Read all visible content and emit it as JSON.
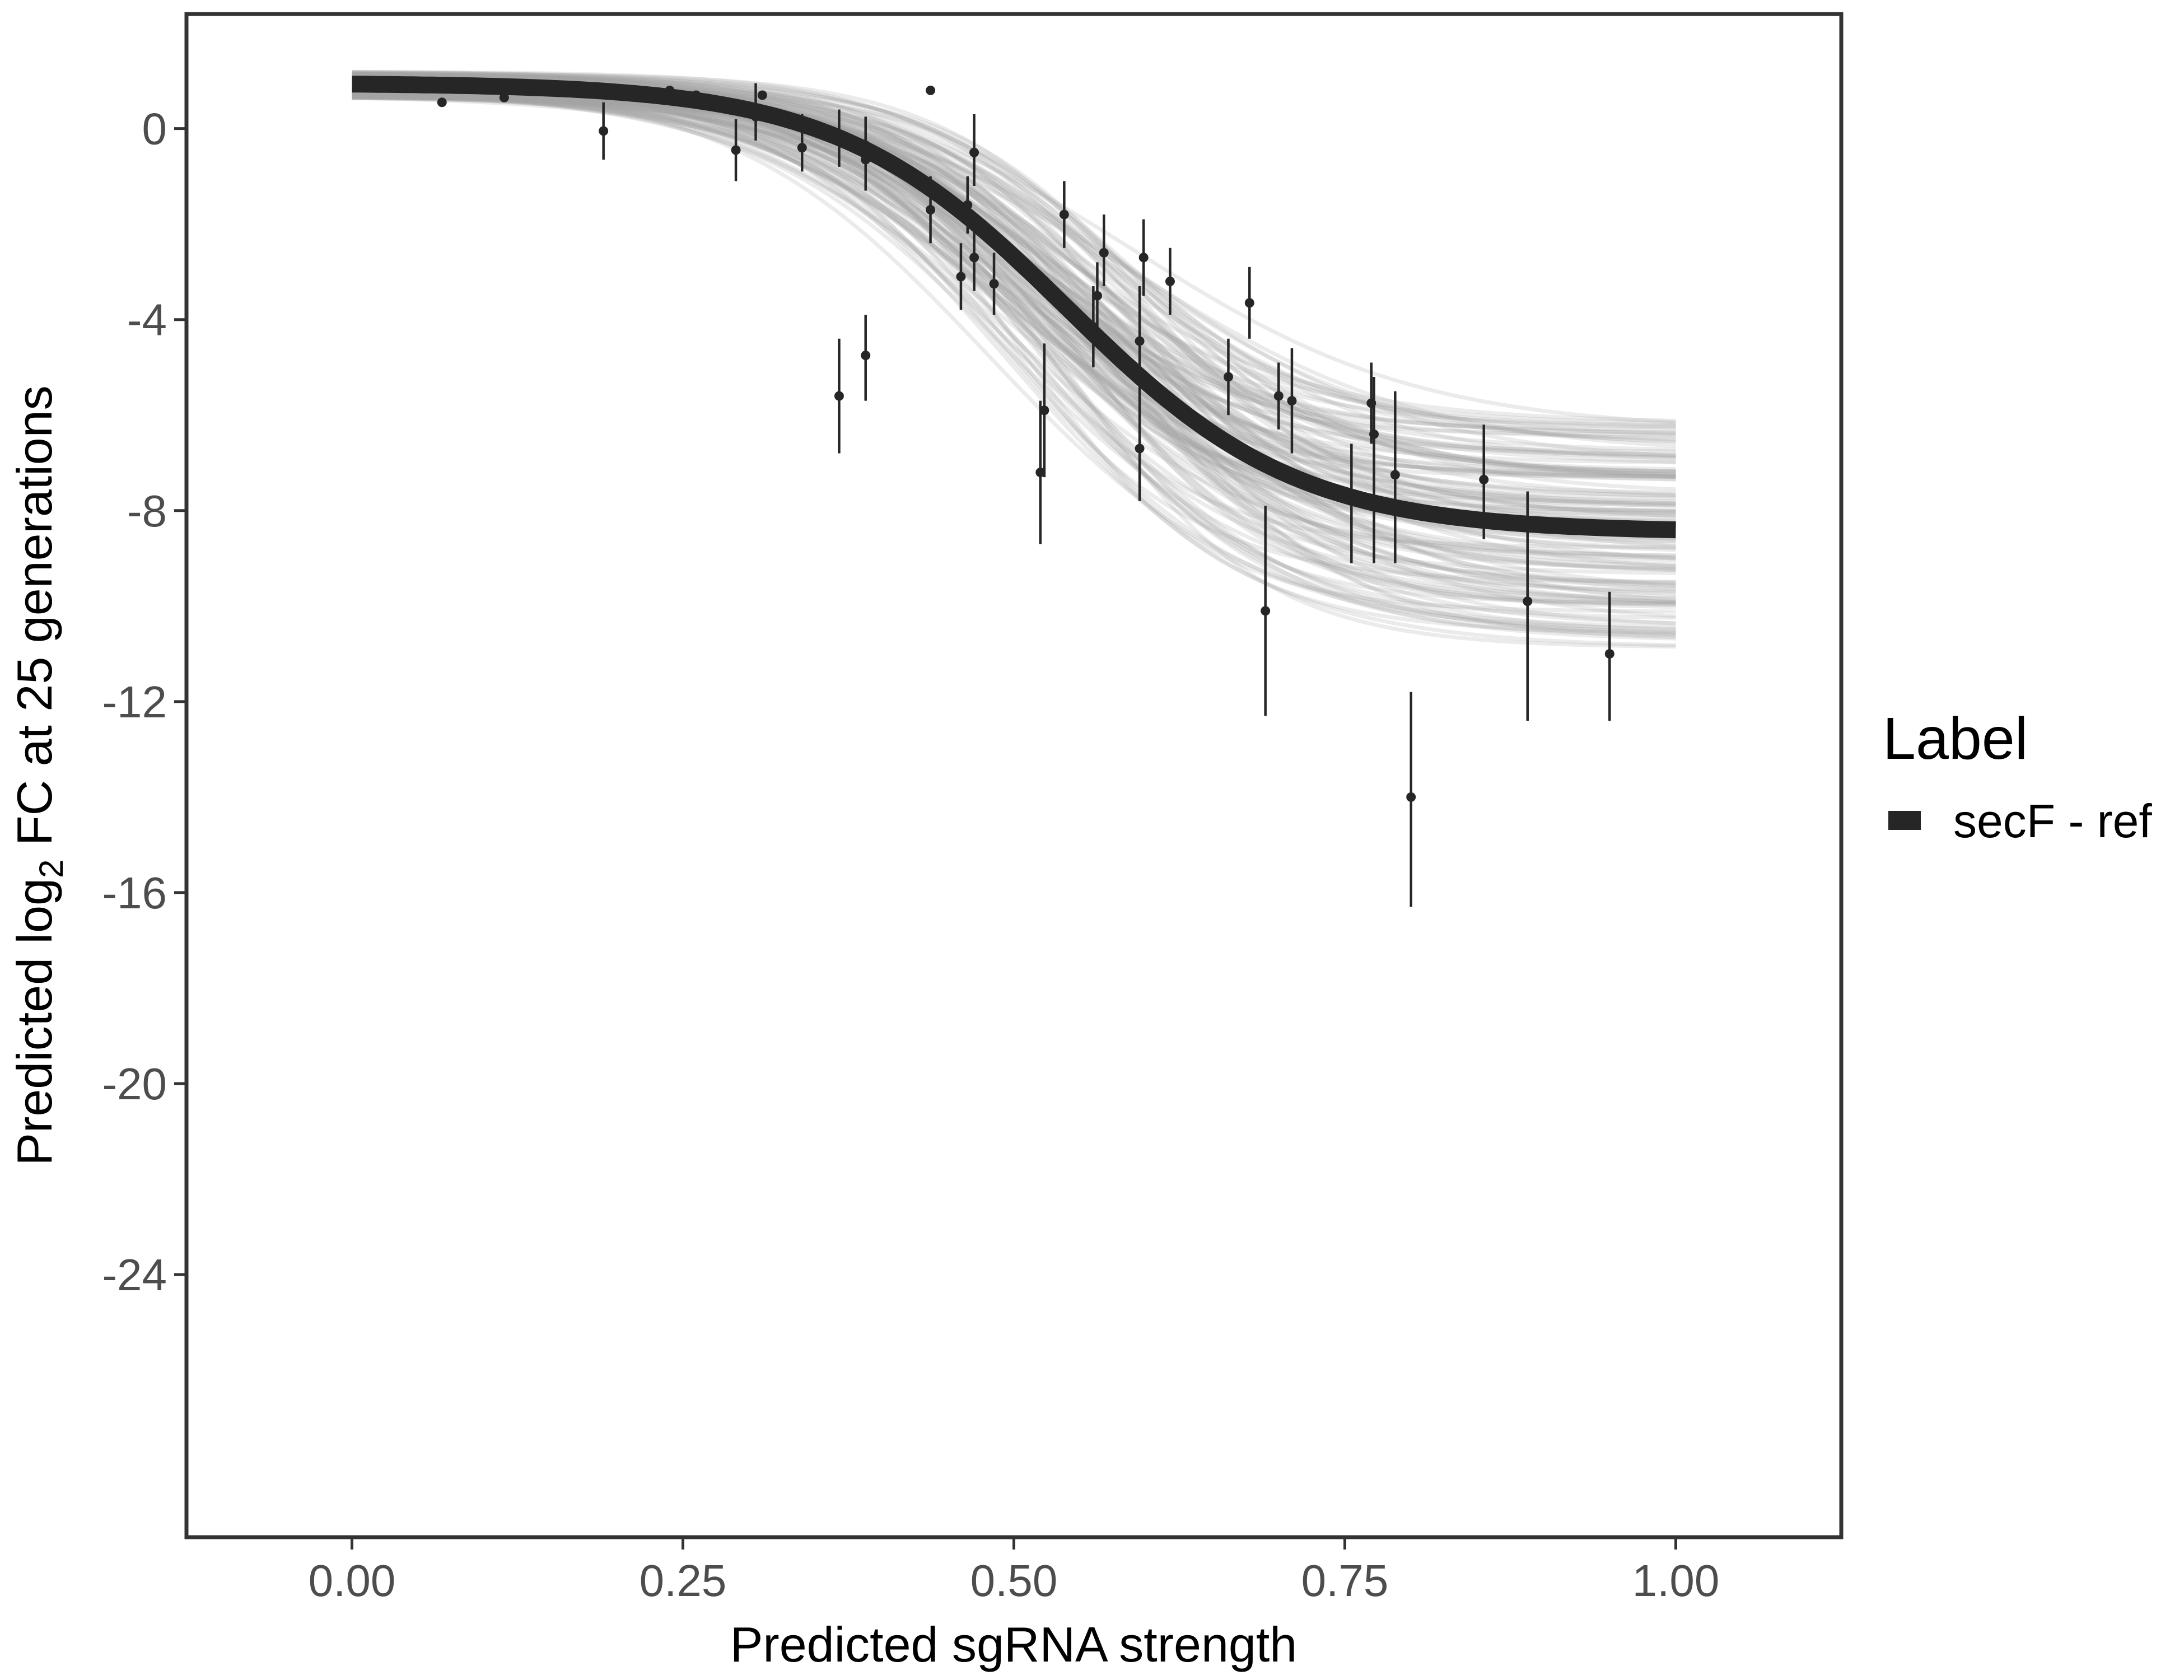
{
  "chart_data": {
    "type": "scatter",
    "title": "",
    "xlabel": "Predicted sgRNA strength",
    "ylabel_parts": [
      "Predicted  log",
      "2",
      " FC at 25 generations"
    ],
    "xlim": [
      -0.125,
      1.125
    ],
    "ylim": [
      -29.5,
      2.4
    ],
    "xticks": [
      0,
      0.25,
      0.5,
      0.75,
      1
    ],
    "xtick_labels": [
      "0.00",
      "0.25",
      "0.50",
      "0.75",
      "1.00"
    ],
    "yticks": [
      0,
      -4,
      -8,
      -12,
      -16,
      -20,
      -24
    ],
    "ytick_labels": [
      "0",
      "-4",
      "-8",
      "-12",
      "-16",
      "-20",
      "-24"
    ],
    "grid": false,
    "legend": {
      "title": "Label",
      "position": "right",
      "entries": [
        {
          "label": "secF - ref",
          "color": "#262626"
        }
      ]
    },
    "fit_curve": {
      "name": "secF - ref",
      "model": "logistic",
      "upper": 0.95,
      "lower": -8.45,
      "midpoint": 0.54,
      "slope": 11.5
    },
    "posterior_band": {
      "description_free": true,
      "upper_range": [
        0.65,
        1.2
      ],
      "lower_range": [
        -10.9,
        -6.1
      ],
      "midpoint_range": [
        0.48,
        0.6
      ],
      "slope_range": [
        9,
        14
      ],
      "draws": 140
    },
    "points": [
      {
        "x": 0.068,
        "y": 0.55
      },
      {
        "x": 0.115,
        "y": 0.65
      },
      {
        "x": 0.19,
        "y": -0.05,
        "lo": -0.65,
        "hi": 0.55
      },
      {
        "x": 0.24,
        "y": 0.8
      },
      {
        "x": 0.26,
        "y": 0.7
      },
      {
        "x": 0.29,
        "y": -0.45,
        "lo": -1.1,
        "hi": 0.2
      },
      {
        "x": 0.305,
        "y": 0.35,
        "lo": -0.25,
        "hi": 0.95
      },
      {
        "x": 0.305,
        "y": 0.25
      },
      {
        "x": 0.31,
        "y": 0.7
      },
      {
        "x": 0.34,
        "y": -0.4,
        "lo": -0.9,
        "hi": 0.3
      },
      {
        "x": 0.368,
        "y": -0.2,
        "lo": -0.8,
        "hi": 0.4
      },
      {
        "x": 0.368,
        "y": -5.6,
        "lo": -6.8,
        "hi": -4.4
      },
      {
        "x": 0.388,
        "y": -0.35,
        "lo": -0.9,
        "hi": 0.25
      },
      {
        "x": 0.388,
        "y": -0.65,
        "lo": -1.3,
        "hi": 0.0
      },
      {
        "x": 0.388,
        "y": -4.75,
        "lo": -5.7,
        "hi": -3.9
      },
      {
        "x": 0.437,
        "y": 0.8
      },
      {
        "x": 0.437,
        "y": -1.7,
        "lo": -2.4,
        "hi": -1.0
      },
      {
        "x": 0.46,
        "y": -3.1,
        "lo": -3.8,
        "hi": -2.4
      },
      {
        "x": 0.465,
        "y": -1.6,
        "lo": -2.2,
        "hi": -1.0
      },
      {
        "x": 0.47,
        "y": -0.5,
        "lo": -1.2,
        "hi": 0.3
      },
      {
        "x": 0.47,
        "y": -2.7,
        "lo": -3.4,
        "hi": -2.0
      },
      {
        "x": 0.485,
        "y": -3.25,
        "lo": -3.9,
        "hi": -2.6
      },
      {
        "x": 0.52,
        "y": -7.2,
        "lo": -8.7,
        "hi": -5.7
      },
      {
        "x": 0.523,
        "y": -5.9,
        "lo": -7.3,
        "hi": -4.5
      },
      {
        "x": 0.538,
        "y": -1.8,
        "lo": -2.5,
        "hi": -1.1
      },
      {
        "x": 0.56,
        "y": -4.15,
        "lo": -5.0,
        "hi": -3.3
      },
      {
        "x": 0.563,
        "y": -3.5,
        "lo": -4.2,
        "hi": -2.8
      },
      {
        "x": 0.568,
        "y": -2.6,
        "lo": -3.3,
        "hi": -1.8
      },
      {
        "x": 0.595,
        "y": -6.7,
        "lo": -7.8,
        "hi": -5.6
      },
      {
        "x": 0.595,
        "y": -4.45,
        "lo": -5.6,
        "hi": -3.3
      },
      {
        "x": 0.598,
        "y": -2.7,
        "lo": -3.5,
        "hi": -1.9
      },
      {
        "x": 0.618,
        "y": -3.2,
        "lo": -3.9,
        "hi": -2.5
      },
      {
        "x": 0.662,
        "y": -5.2,
        "lo": -6.0,
        "hi": -4.4
      },
      {
        "x": 0.678,
        "y": -3.65,
        "lo": -4.4,
        "hi": -2.9
      },
      {
        "x": 0.69,
        "y": -10.1,
        "lo": -12.3,
        "hi": -7.9
      },
      {
        "x": 0.7,
        "y": -5.6,
        "lo": -6.3,
        "hi": -4.9
      },
      {
        "x": 0.71,
        "y": -5.7,
        "lo": -6.8,
        "hi": -4.6
      },
      {
        "x": 0.755,
        "y": -7.8,
        "lo": -9.1,
        "hi": -6.6
      },
      {
        "x": 0.77,
        "y": -5.75,
        "lo": -6.6,
        "hi": -4.9
      },
      {
        "x": 0.772,
        "y": -6.4,
        "lo": -9.1,
        "hi": -5.2
      },
      {
        "x": 0.788,
        "y": -7.25,
        "lo": -9.1,
        "hi": -5.5
      },
      {
        "x": 0.8,
        "y": -14.0,
        "lo": -16.3,
        "hi": -11.8
      },
      {
        "x": 0.855,
        "y": -7.35,
        "lo": -8.6,
        "hi": -6.2
      },
      {
        "x": 0.888,
        "y": -9.9,
        "lo": -12.4,
        "hi": -7.6
      },
      {
        "x": 0.95,
        "y": -11.0,
        "lo": -12.4,
        "hi": -9.7
      }
    ]
  }
}
